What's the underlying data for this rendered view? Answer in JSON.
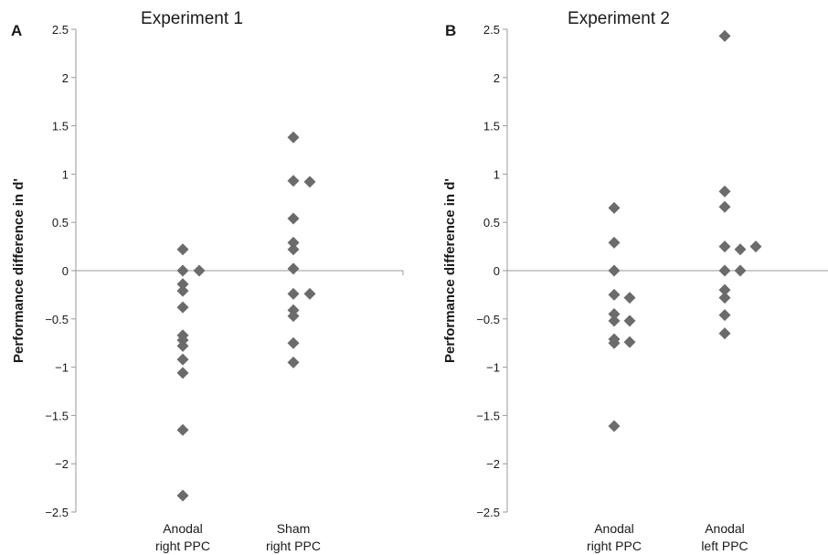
{
  "chart_data": [
    {
      "type": "scatter",
      "panel": "A",
      "title": "Experiment 1",
      "ylabel": "Performance difference in d'",
      "xlabel": "",
      "ylim": [
        -2.5,
        2.5
      ],
      "yticks": [
        "2.5",
        "2",
        "1.5",
        "1",
        "0.5",
        "0",
        "−0.5",
        "−1",
        "−1.5",
        "−2",
        "−2.5"
      ],
      "categories": [
        {
          "line1": "Anodal",
          "line2": "right PPC"
        },
        {
          "line1": "Sham",
          "line2": "right PPC"
        }
      ],
      "series": [
        {
          "category": 0,
          "points": [
            {
              "offset": 0,
              "y": 0.22
            },
            {
              "offset": 0,
              "y": 0.0
            },
            {
              "offset": 1,
              "y": 0.0
            },
            {
              "offset": 0,
              "y": -0.14
            },
            {
              "offset": 0,
              "y": -0.21
            },
            {
              "offset": 0,
              "y": -0.38
            },
            {
              "offset": 0,
              "y": -0.67
            },
            {
              "offset": 0,
              "y": -0.72
            },
            {
              "offset": 0,
              "y": -0.78
            },
            {
              "offset": 0,
              "y": -0.92
            },
            {
              "offset": 0,
              "y": -1.06
            },
            {
              "offset": 0,
              "y": -1.65
            },
            {
              "offset": 0,
              "y": -2.33
            }
          ]
        },
        {
          "category": 1,
          "points": [
            {
              "offset": 0,
              "y": 1.38
            },
            {
              "offset": 0,
              "y": 0.93
            },
            {
              "offset": 1,
              "y": 0.92
            },
            {
              "offset": 0,
              "y": 0.54
            },
            {
              "offset": 0,
              "y": 0.29
            },
            {
              "offset": 0,
              "y": 0.22
            },
            {
              "offset": 0,
              "y": 0.02
            },
            {
              "offset": 0,
              "y": -0.24
            },
            {
              "offset": 1,
              "y": -0.24
            },
            {
              "offset": 0,
              "y": -0.41
            },
            {
              "offset": 0,
              "y": -0.47
            },
            {
              "offset": 0,
              "y": -0.75
            },
            {
              "offset": 0,
              "y": -0.95
            }
          ]
        }
      ],
      "marker_color": "#6b6b6b"
    },
    {
      "type": "scatter",
      "panel": "B",
      "title": "Experiment 2",
      "ylabel": "Performance difference in d'",
      "xlabel": "",
      "ylim": [
        -2.5,
        2.5
      ],
      "yticks": [
        "2.5",
        "2",
        "1.5",
        "1",
        "0.5",
        "0",
        "−0.5",
        "−1",
        "−1.5",
        "−2",
        "−2.5"
      ],
      "categories": [
        {
          "line1": "Anodal",
          "line2": "right PPC"
        },
        {
          "line1": "Anodal",
          "line2": "left PPC"
        }
      ],
      "series": [
        {
          "category": 0,
          "points": [
            {
              "offset": 0,
              "y": 0.65
            },
            {
              "offset": 0,
              "y": 0.29
            },
            {
              "offset": 0,
              "y": 0.0
            },
            {
              "offset": 0,
              "y": -0.25
            },
            {
              "offset": 1,
              "y": -0.28
            },
            {
              "offset": 0,
              "y": -0.45
            },
            {
              "offset": 0,
              "y": -0.52
            },
            {
              "offset": 1,
              "y": -0.52
            },
            {
              "offset": 0,
              "y": -0.71
            },
            {
              "offset": 0,
              "y": -0.75
            },
            {
              "offset": 1,
              "y": -0.74
            },
            {
              "offset": 0,
              "y": -1.61
            }
          ]
        },
        {
          "category": 1,
          "points": [
            {
              "offset": 0,
              "y": 2.43
            },
            {
              "offset": 0,
              "y": 0.82
            },
            {
              "offset": 0,
              "y": 0.66
            },
            {
              "offset": 0,
              "y": 0.25
            },
            {
              "offset": 1,
              "y": 0.22
            },
            {
              "offset": 2,
              "y": 0.25
            },
            {
              "offset": 0,
              "y": 0.0
            },
            {
              "offset": 1,
              "y": 0.0
            },
            {
              "offset": 0,
              "y": -0.2
            },
            {
              "offset": 0,
              "y": -0.28
            },
            {
              "offset": 0,
              "y": -0.46
            },
            {
              "offset": 0,
              "y": -0.65
            }
          ]
        }
      ],
      "marker_color": "#6b6b6b"
    }
  ]
}
